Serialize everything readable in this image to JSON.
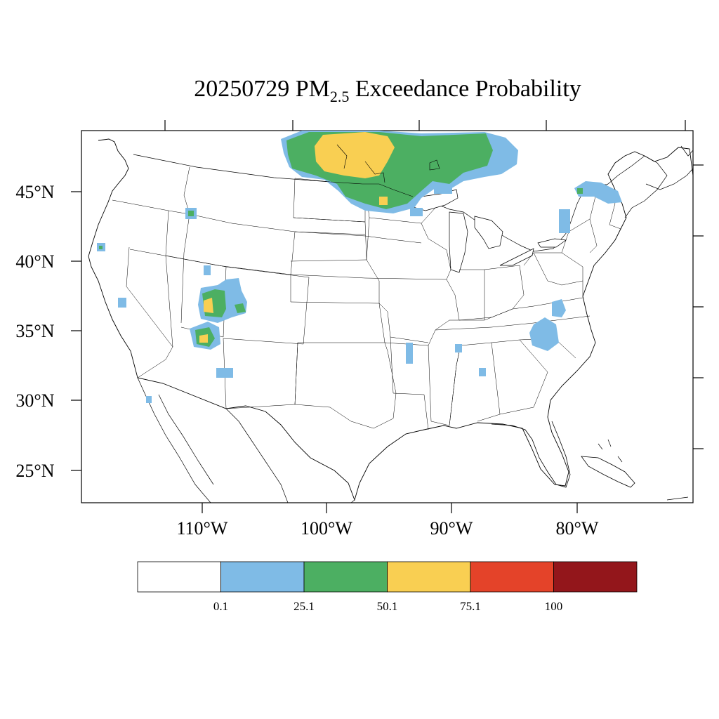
{
  "title": {
    "date": "20250729",
    "species": "PM",
    "species_sub": "2.5",
    "suffix": "Exceedance Probability"
  },
  "map": {
    "lat_labels": [
      "45°N",
      "40°N",
      "35°N",
      "30°N",
      "25°N"
    ],
    "lon_labels": [
      "110°W",
      "100°W",
      "90°W",
      "80°W"
    ],
    "land_color": "#ffffff",
    "boundary_color": "#000000"
  },
  "legend": {
    "colors": [
      "#ffffff",
      "#7fbbe6",
      "#4caf62",
      "#f9cf52",
      "#e44329",
      "#93161b"
    ],
    "labels": [
      "0.1",
      "25.1",
      "50.1",
      "75.1",
      "100"
    ]
  },
  "probability_areas": [
    {
      "region": "north-central-us-southern-canada",
      "max_level": "50.1-75.1"
    },
    {
      "region": "southwest-utah-colorado",
      "max_level": "50.1-75.1"
    },
    {
      "region": "arizona",
      "max_level": "50.1-75.1"
    },
    {
      "region": "idaho",
      "max_level": "25.1-50.1"
    },
    {
      "region": "northern-california",
      "max_level": "25.1-50.1"
    },
    {
      "region": "new-england-quebec",
      "max_level": "25.1-50.1"
    },
    {
      "region": "appalachians",
      "max_level": "0.1-25.1"
    }
  ]
}
